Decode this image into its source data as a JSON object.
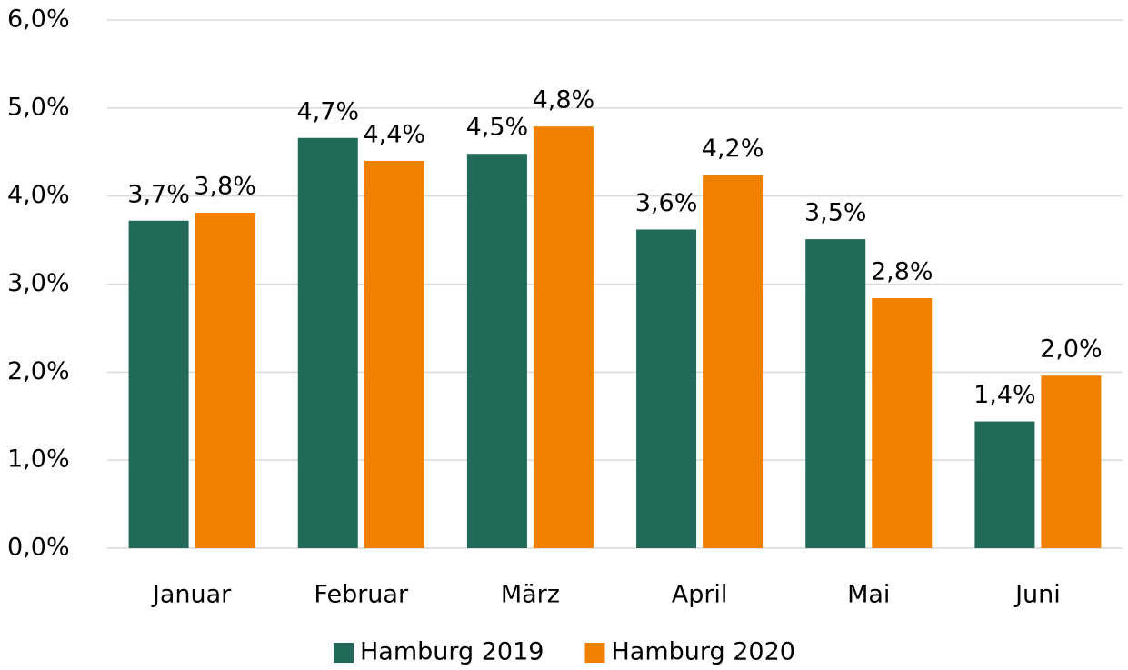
{
  "chart_data": {
    "type": "bar",
    "categories": [
      "Januar",
      "Februar",
      "März",
      "April",
      "Mai",
      "Juni"
    ],
    "series": [
      {
        "name": "Hamburg 2019",
        "color": "#216958",
        "values": [
          3.72,
          4.66,
          4.48,
          3.62,
          3.51,
          1.44
        ],
        "value_labels": [
          "3,7%",
          "4,7%",
          "4,5%",
          "3,6%",
          "3,5%",
          "1,4%"
        ]
      },
      {
        "name": "Hamburg 2020",
        "color": "#f08000",
        "values": [
          3.81,
          4.4,
          4.79,
          4.24,
          2.84,
          1.96
        ],
        "value_labels": [
          "3,8%",
          "4,4%",
          "4,8%",
          "4,2%",
          "2,8%",
          "2,0%"
        ]
      }
    ],
    "ylim": [
      0,
      6
    ],
    "yticks": [
      {
        "value": 0,
        "label": "0,0%"
      },
      {
        "value": 1,
        "label": "1,0%"
      },
      {
        "value": 2,
        "label": "2,0%"
      },
      {
        "value": 3,
        "label": "3,0%"
      },
      {
        "value": 4,
        "label": "4,0%"
      },
      {
        "value": 5,
        "label": "5,0%"
      },
      {
        "value": 6,
        "label": "6,0%"
      }
    ],
    "grid": true,
    "legend": "bottom"
  }
}
